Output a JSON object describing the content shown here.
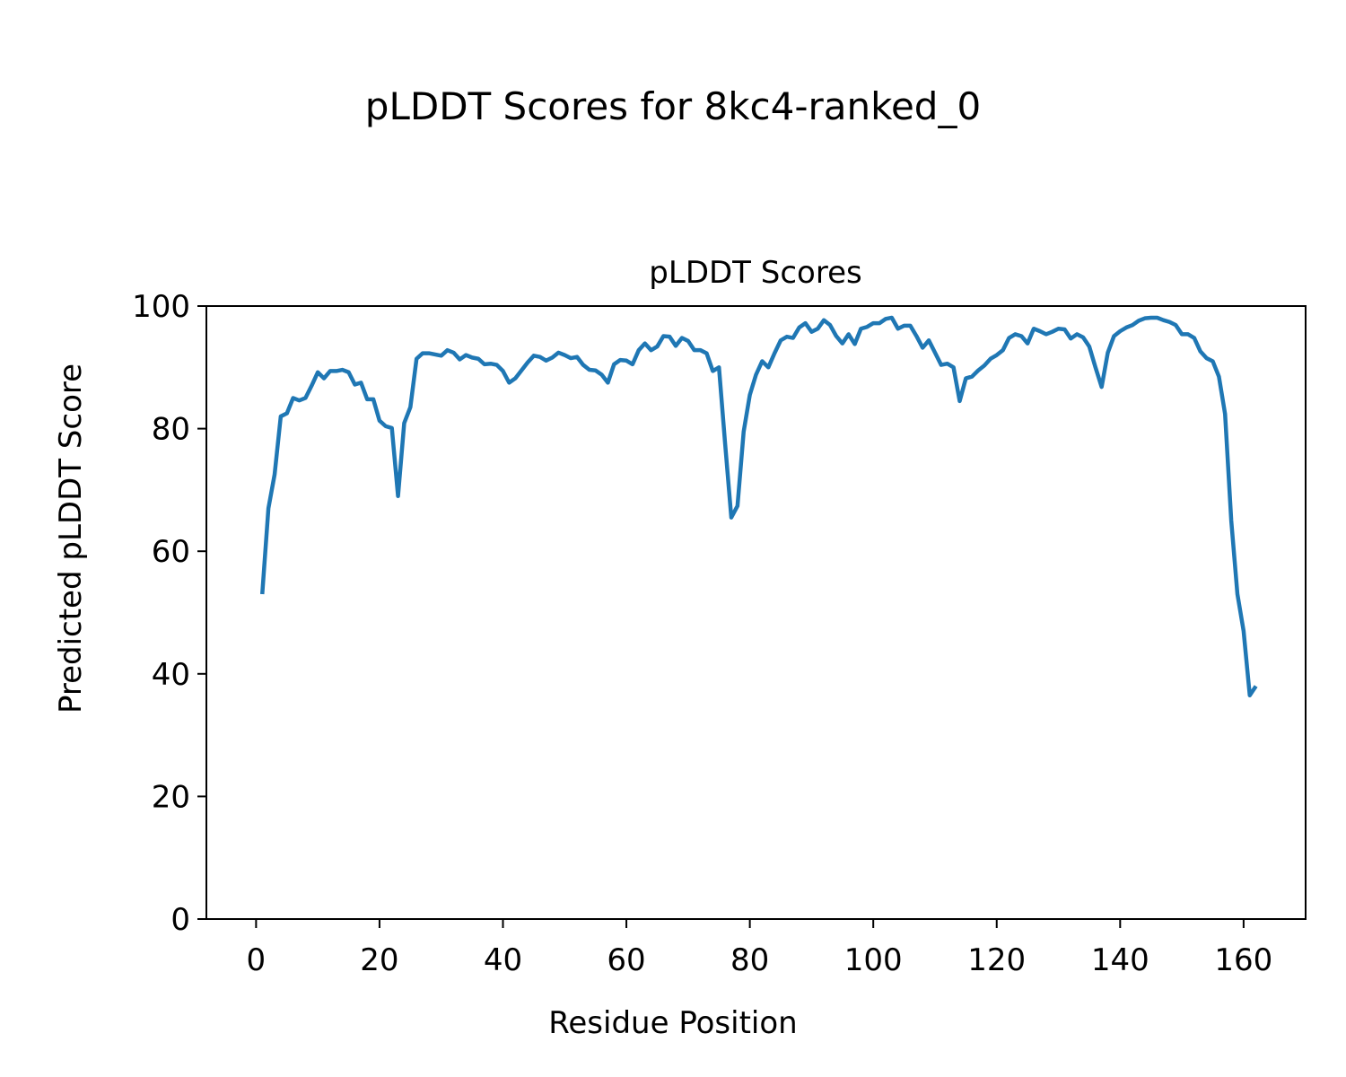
{
  "figure": {
    "suptitle": "pLDDT Scores for 8kc4-ranked_0"
  },
  "chart_data": {
    "type": "line",
    "title": "pLDDT Scores",
    "xlabel": "Residue Position",
    "ylabel": "Predicted pLDDT Score",
    "xlim": [
      -8.05,
      170.05
    ],
    "ylim": [
      0,
      100
    ],
    "xticks": [
      0,
      20,
      40,
      60,
      80,
      100,
      120,
      140,
      160
    ],
    "yticks": [
      0,
      20,
      40,
      60,
      80,
      100
    ],
    "grid": false,
    "line_color": "#1f77b4",
    "series": [
      {
        "x": [
          1,
          2,
          3,
          4,
          5,
          6,
          7,
          8,
          9,
          10,
          11,
          12,
          13,
          14,
          15,
          16,
          17,
          18,
          19,
          20,
          21,
          22,
          23,
          24,
          25,
          26,
          27,
          28,
          29,
          30,
          31,
          32,
          33,
          34,
          35,
          36,
          37,
          38,
          39,
          40,
          41,
          42,
          43,
          44,
          45,
          46,
          47,
          48,
          49,
          50,
          51,
          52,
          53,
          54,
          55,
          56,
          57,
          58,
          59,
          60,
          61,
          62,
          63,
          64,
          65,
          66,
          67,
          68,
          69,
          70,
          71,
          72,
          73,
          74,
          75,
          76,
          77,
          78,
          79,
          80,
          81,
          82,
          83,
          84,
          85,
          86,
          87,
          88,
          89,
          90,
          91,
          92,
          93,
          94,
          95,
          96,
          97,
          98,
          99,
          100,
          101,
          102,
          103,
          104,
          105,
          106,
          107,
          108,
          109,
          110,
          111,
          112,
          113,
          114,
          115,
          116,
          117,
          118,
          119,
          120,
          121,
          122,
          123,
          124,
          125,
          126,
          127,
          128,
          129,
          130,
          131,
          132,
          133,
          134,
          135,
          136,
          137,
          138,
          139,
          140,
          141,
          142,
          143,
          144,
          145,
          146,
          147,
          148,
          149,
          150,
          151,
          152,
          153,
          154,
          155,
          156,
          157,
          158,
          159,
          160,
          161,
          162
        ],
        "y": [
          53,
          67,
          72.5,
          82,
          82.5,
          85,
          84.6,
          85,
          87,
          89.2,
          88.2,
          89.4,
          89.4,
          89.6,
          89.2,
          87.2,
          87.5,
          84.8,
          84.8,
          81.3,
          80.4,
          80.1,
          69,
          80.9,
          83.5,
          91.4,
          92.3,
          92.3,
          92.1,
          91.9,
          92.8,
          92.4,
          91.3,
          92,
          91.6,
          91.4,
          90.5,
          90.6,
          90.4,
          89.4,
          87.5,
          88.2,
          89.5,
          90.8,
          91.9,
          91.7,
          91.1,
          91.6,
          92.4,
          92,
          91.5,
          91.7,
          90.4,
          89.6,
          89.5,
          88.8,
          87.5,
          90.5,
          91.2,
          91.1,
          90.5,
          92.8,
          93.9,
          92.8,
          93.4,
          95.1,
          95,
          93.5,
          94.8,
          94.3,
          92.8,
          92.8,
          92.3,
          89.4,
          90,
          77.5,
          65.5,
          67.4,
          79.5,
          85.5,
          88.8,
          91,
          90,
          92.3,
          94.4,
          95,
          94.8,
          96.5,
          97.2,
          95.8,
          96.3,
          97.7,
          96.9,
          95.1,
          93.9,
          95.4,
          93.8,
          96.3,
          96.6,
          97.2,
          97.2,
          97.9,
          98.1,
          96.3,
          96.8,
          96.8,
          95.1,
          93.2,
          94.4,
          92.4,
          90.4,
          90.6,
          90,
          84.5,
          88.2,
          88.5,
          89.5,
          90.3,
          91.4,
          92,
          92.8,
          94.8,
          95.4,
          95.1,
          93.9,
          96.3,
          95.9,
          95.4,
          95.8,
          96.3,
          96.2,
          94.7,
          95.4,
          94.9,
          93.4,
          90,
          86.8,
          92.4,
          95.1,
          95.9,
          96.5,
          96.9,
          97.6,
          98,
          98.1,
          98.1,
          97.7,
          97.4,
          96.9,
          95.4,
          95.4,
          94.8,
          92.6,
          91.5,
          91,
          88.5,
          82.4,
          65,
          53,
          47,
          36.5,
          38
        ]
      }
    ]
  }
}
